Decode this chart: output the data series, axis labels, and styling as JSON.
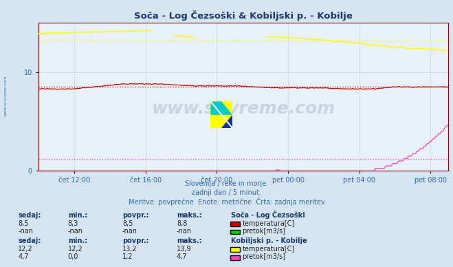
{
  "title": "Soča - Log Čezsoški & Kobiljski p. - Kobilje",
  "title_color": "#1a3a6b",
  "bg_color": "#d4e4f0",
  "plot_bg_color": "#e8f0f8",
  "grid_color": "#c8d4e0",
  "axis_color": "#880000",
  "tick_color": "#3366aa",
  "ylim": [
    0,
    15
  ],
  "yticks": [
    0,
    10
  ],
  "footnote1": "Slovenija / reke in morje.",
  "footnote2": "zadnji dan / 5 minut.",
  "footnote3": "Meritve: povprečne  Enote: metrične  Črta: zadnja meritev",
  "footnote_color": "#3366aa",
  "watermark": "www.si-vreme.com",
  "watermark_color": "#1a3a6b",
  "xtick_labels": [
    "čet 12:00",
    "čet 16:00",
    "čet 20:00",
    "pet 00:00",
    "pet 04:00",
    "pet 08:00"
  ],
  "n_points": 288,
  "soča_temp_color": "#cc0000",
  "soča_temp_avg": 8.5,
  "soča_pretok_color": "#00cc00",
  "kobilje_temp_color": "#ffff00",
  "kobilje_temp_avg": 13.2,
  "kobilje_pretok_color": "#ff44bb",
  "kobilje_pretok_avg": 1.2,
  "sidebar_text": "www.si-vreme.com",
  "sidebar_color": "#3366aa",
  "col_headers": [
    "sedaj:",
    "min.:",
    "povpr.:",
    "maks.:"
  ],
  "soča_label": "Soča - Log Čezsoški",
  "kobilje_label": "Kobiljski p. - Kobilje",
  "soča_temp_vals": [
    "8,5",
    "8,3",
    "8,5",
    "8,8"
  ],
  "soča_pretok_vals": [
    "-nan",
    "-nan",
    "-nan",
    "-nan"
  ],
  "kobilje_temp_vals": [
    "12,2",
    "12,2",
    "13,2",
    "13,9"
  ],
  "kobilje_pretok_vals": [
    "4,7",
    "0,0",
    "1,2",
    "4,7"
  ],
  "temp_label": "temperatura[C]",
  "pretok_label": "pretok[m3/s]"
}
